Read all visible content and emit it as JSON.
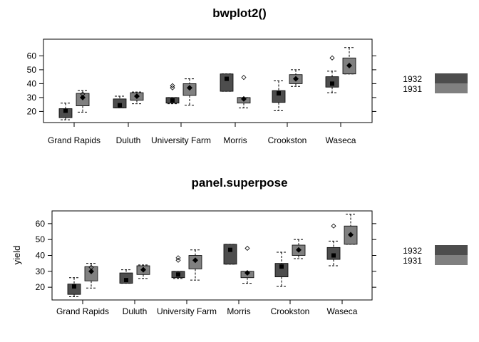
{
  "chart_data": [
    {
      "type": "box",
      "title": "bwplot2()",
      "xlabel": "",
      "ylabel": "",
      "categories": [
        "Grand Rapids",
        "Duluth",
        "University Farm",
        "Morris",
        "Crookston",
        "Waseca"
      ],
      "ylim": [
        12,
        72
      ],
      "yticks": [
        20,
        30,
        40,
        50,
        60
      ],
      "grid": false,
      "legend_position": "right",
      "series": [
        {
          "name": "1932",
          "color": "#4d4d4d",
          "marker": "square",
          "boxes": [
            {
              "min": 14,
              "q1": 15.5,
              "median": 20.5,
              "q3": 22,
              "max": 26,
              "outliers": []
            },
            {
              "min": 22.5,
              "q1": 22.5,
              "median": 24.5,
              "q3": 29,
              "max": 31,
              "outliers": []
            },
            {
              "min": 25.5,
              "q1": 26,
              "median": 28,
              "q3": 30,
              "max": 30,
              "outliers": [
                37,
                38.5
              ]
            },
            {
              "min": 34.5,
              "q1": 34.5,
              "median": 43.5,
              "q3": 47,
              "max": 47,
              "outliers": []
            },
            {
              "min": 20.5,
              "q1": 26.5,
              "median": 33,
              "q3": 35,
              "max": 42,
              "outliers": []
            },
            {
              "min": 33.5,
              "q1": 37.5,
              "median": 40,
              "q3": 45,
              "max": 49,
              "outliers": [
                58.5
              ]
            }
          ]
        },
        {
          "name": "1931",
          "color": "#808080",
          "marker": "diamond",
          "boxes": [
            {
              "min": 19.5,
              "q1": 24,
              "median": 30,
              "q3": 33,
              "max": 35,
              "outliers": [
                32.5
              ]
            },
            {
              "min": 25.5,
              "q1": 28,
              "median": 31,
              "q3": 33.5,
              "max": 34,
              "outliers": []
            },
            {
              "min": 24.5,
              "q1": 31.5,
              "median": 37,
              "q3": 40,
              "max": 43.5,
              "outliers": []
            },
            {
              "min": 22.5,
              "q1": 26,
              "median": 29,
              "q3": 30,
              "max": 30,
              "outliers": [
                44.5
              ]
            },
            {
              "min": 38,
              "q1": 40,
              "median": 43.5,
              "q3": 46.5,
              "max": 50,
              "outliers": []
            },
            {
              "min": 47,
              "q1": 47,
              "median": 53,
              "q3": 58.5,
              "max": 66,
              "outliers": []
            }
          ]
        }
      ]
    },
    {
      "type": "box",
      "title": "panel.superpose",
      "xlabel": "",
      "ylabel": "yield",
      "categories": [
        "Grand Rapids",
        "Duluth",
        "University Farm",
        "Morris",
        "Crookston",
        "Waseca"
      ],
      "ylim": [
        12,
        68
      ],
      "yticks": [
        20,
        30,
        40,
        50,
        60
      ],
      "grid": false,
      "legend_position": "right",
      "series": [
        {
          "name": "1932",
          "color": "#4d4d4d",
          "marker": "square",
          "boxes": [
            {
              "min": 14,
              "q1": 15.5,
              "median": 20.5,
              "q3": 22,
              "max": 26,
              "outliers": []
            },
            {
              "min": 22.5,
              "q1": 22.5,
              "median": 24.5,
              "q3": 29,
              "max": 31,
              "outliers": []
            },
            {
              "min": 25.5,
              "q1": 26,
              "median": 28,
              "q3": 30,
              "max": 30,
              "outliers": [
                37,
                38.5
              ]
            },
            {
              "min": 34.5,
              "q1": 34.5,
              "median": 43.5,
              "q3": 47,
              "max": 47,
              "outliers": []
            },
            {
              "min": 20.5,
              "q1": 26.5,
              "median": 33,
              "q3": 35,
              "max": 42,
              "outliers": []
            },
            {
              "min": 33.5,
              "q1": 37.5,
              "median": 40,
              "q3": 45,
              "max": 49,
              "outliers": [
                58.5
              ]
            }
          ]
        },
        {
          "name": "1931",
          "color": "#808080",
          "marker": "diamond",
          "boxes": [
            {
              "min": 19.5,
              "q1": 24,
              "median": 30,
              "q3": 33,
              "max": 35,
              "outliers": [
                32.5
              ]
            },
            {
              "min": 25.5,
              "q1": 28,
              "median": 31,
              "q3": 33.5,
              "max": 34,
              "outliers": []
            },
            {
              "min": 24.5,
              "q1": 31.5,
              "median": 37,
              "q3": 40,
              "max": 43.5,
              "outliers": []
            },
            {
              "min": 22.5,
              "q1": 26,
              "median": 29,
              "q3": 30,
              "max": 30,
              "outliers": [
                44.5
              ]
            },
            {
              "min": 38,
              "q1": 40,
              "median": 43.5,
              "q3": 46.5,
              "max": 50,
              "outliers": []
            },
            {
              "min": 47,
              "q1": 47,
              "median": 53,
              "q3": 58.5,
              "max": 66,
              "outliers": []
            }
          ]
        }
      ]
    }
  ]
}
